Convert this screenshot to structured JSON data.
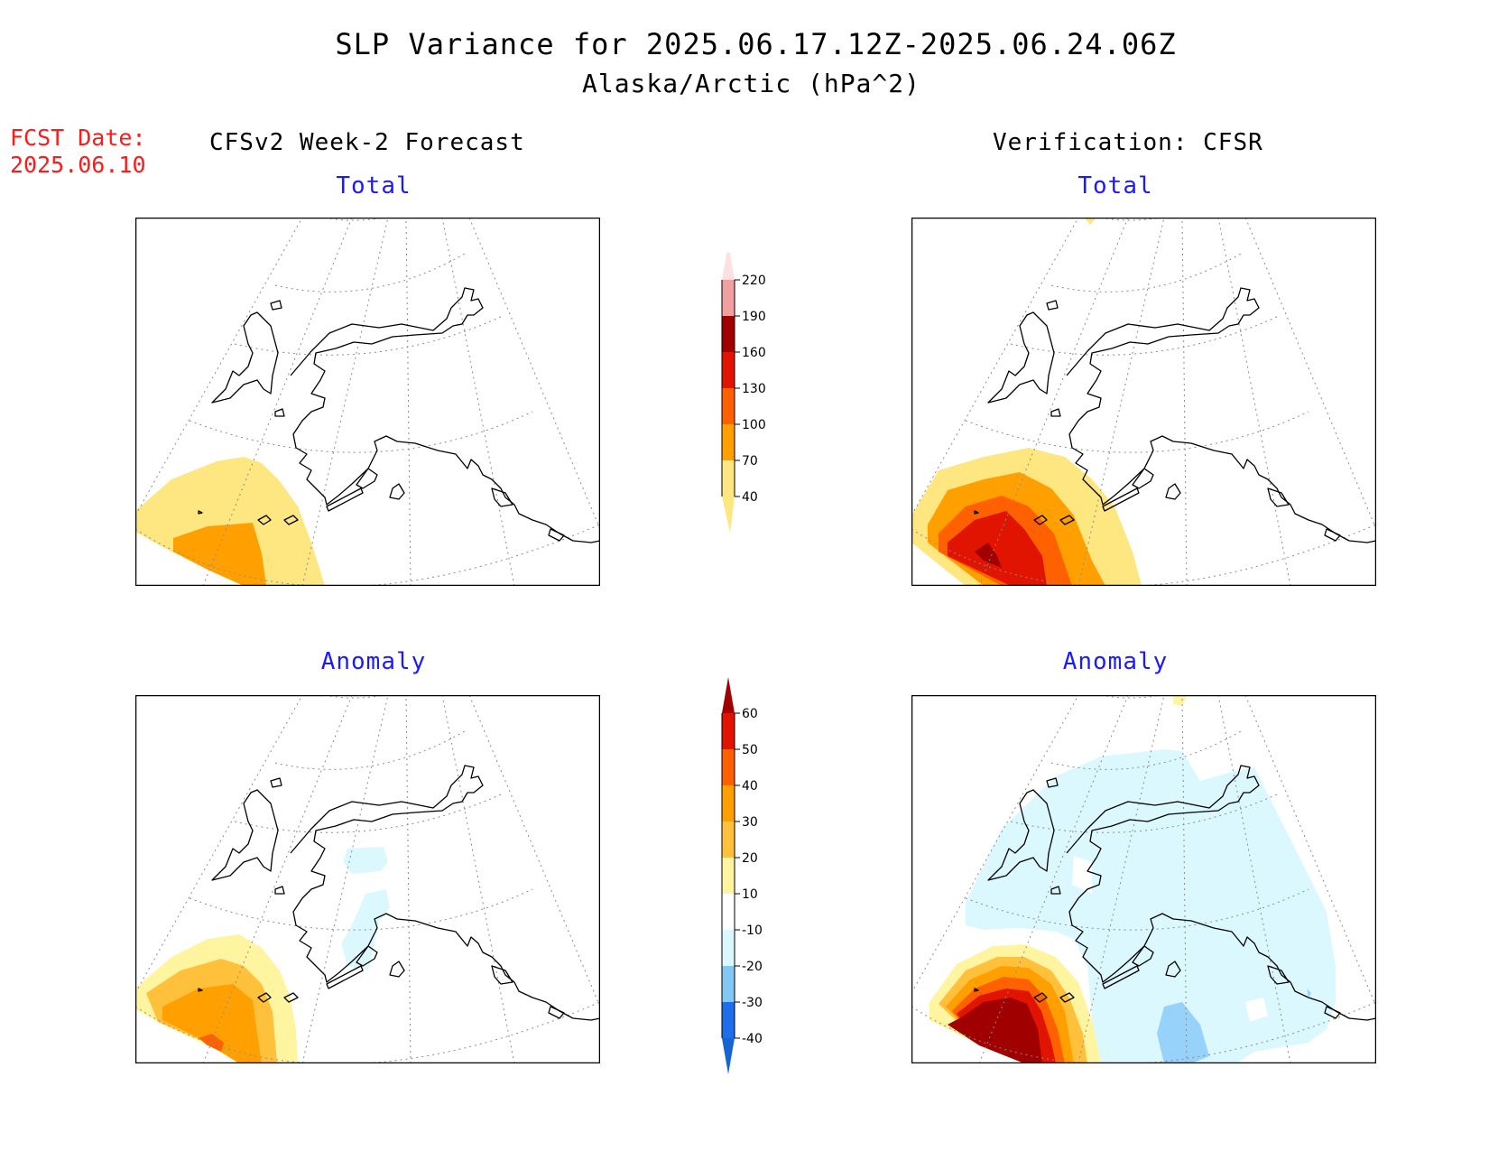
{
  "title": {
    "line1": "SLP Variance for 2025.06.17.12Z-2025.06.24.06Z",
    "line2": "Alaska/Arctic (hPa^2)"
  },
  "forecast_date": {
    "label": "FCST Date:",
    "value": "2025.06.10"
  },
  "headers": {
    "left": "CFSv2 Week-2 Forecast",
    "right": "Verification: CFSR"
  },
  "panels": {
    "top_left": "Total",
    "top_right": "Total",
    "bottom_left": "Anomaly",
    "bottom_right": "Anomaly"
  },
  "colorbar_total": {
    "ticks": [
      "40",
      "70",
      "100",
      "130",
      "160",
      "190",
      "220"
    ],
    "colors": [
      "#fee680",
      "#ffa000",
      "#ff6000",
      "#e01400",
      "#a00000",
      "#f0a0a0",
      "#fde0e0"
    ]
  },
  "colorbar_anomaly": {
    "ticks": [
      "-40",
      "-30",
      "-20",
      "-10",
      "10",
      "20",
      "30",
      "40",
      "50",
      "60"
    ],
    "colors": [
      "#1464d2",
      "#1e6eeb",
      "#82c8f5",
      "#dcf8ff",
      "#ffffff",
      "#fff5a0",
      "#ffc03c",
      "#ffa000",
      "#ff6000",
      "#e01400",
      "#a00000"
    ]
  }
}
